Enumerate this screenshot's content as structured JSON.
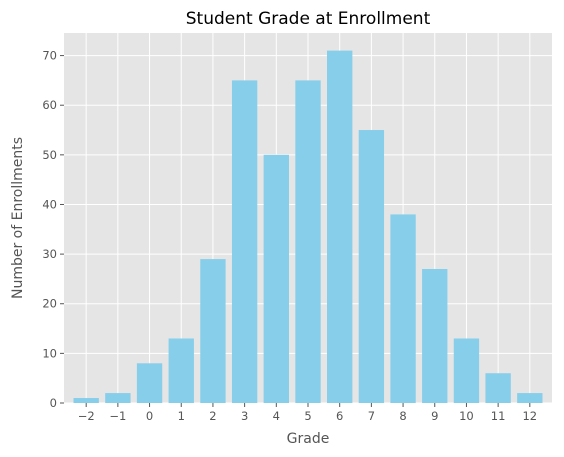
{
  "chart_data": {
    "type": "bar",
    "title": "Student Grade at Enrollment",
    "xlabel": "Grade",
    "ylabel": "Number of Enrollments",
    "categories": [
      "−2",
      "−1",
      "0",
      "1",
      "2",
      "3",
      "4",
      "5",
      "6",
      "7",
      "8",
      "9",
      "10",
      "11",
      "12"
    ],
    "values": [
      1,
      2,
      8,
      13,
      29,
      65,
      50,
      65,
      71,
      55,
      38,
      27,
      13,
      6,
      2
    ],
    "ylim": [
      0,
      74.55
    ],
    "yticks": [
      0,
      10,
      20,
      30,
      40,
      50,
      60,
      70
    ],
    "grid": true,
    "legend": "none",
    "colors": {
      "bar": "#87CEEB",
      "plot_background": "#E5E5E5",
      "grid": "#FFFFFF",
      "text": "#555555"
    }
  }
}
